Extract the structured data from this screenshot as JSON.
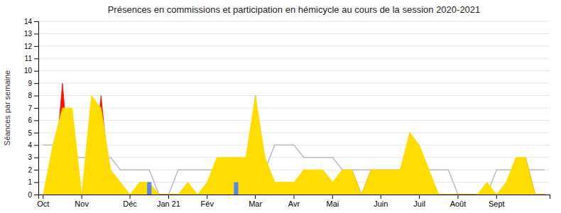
{
  "chart_data": {
    "type": "area",
    "title": "Présences en commissions et participation en hémicycle au cours de la session 2020-2021",
    "ylabel": "Séances par semaine",
    "categories": [
      "Oct",
      null,
      null,
      null,
      "Nov",
      null,
      null,
      null,
      null,
      "Déc",
      null,
      null,
      null,
      "Jan 21",
      null,
      null,
      null,
      "Fév",
      null,
      null,
      null,
      null,
      "Mar",
      null,
      null,
      null,
      "Avr",
      null,
      null,
      null,
      "Mai",
      null,
      null,
      null,
      null,
      "Juin",
      null,
      null,
      null,
      "Juil",
      null,
      null,
      null,
      "Août",
      null,
      null,
      null,
      "Sept",
      null,
      null,
      null,
      null,
      null
    ],
    "ylim": [
      0,
      14
    ],
    "yticks": [
      0,
      1,
      2,
      3,
      4,
      5,
      6,
      7,
      8,
      9,
      10,
      11,
      12,
      13,
      14
    ],
    "grid": true,
    "series": [
      {
        "type": "line",
        "color": "#bbbbbb",
        "values": [
          4,
          4,
          3,
          3,
          3,
          3,
          3,
          3,
          2,
          2,
          2,
          2,
          0,
          0,
          2,
          2,
          2,
          2,
          2,
          2,
          2,
          2,
          2,
          2,
          4,
          4,
          4,
          3,
          3,
          3,
          3,
          2,
          2,
          2,
          2,
          2,
          2,
          2,
          2,
          2,
          2,
          2,
          2,
          0,
          0,
          0,
          0,
          2,
          2,
          2,
          2,
          2,
          2
        ]
      },
      {
        "type": "area",
        "color": "#ff1100",
        "values": [
          0,
          0,
          9,
          0,
          0,
          0,
          8,
          0,
          0,
          0,
          0,
          0,
          0,
          0,
          0,
          0,
          0,
          0,
          0,
          0,
          0,
          0,
          8,
          0,
          0,
          0,
          0,
          2,
          0,
          0,
          0,
          0,
          2,
          0,
          2,
          0,
          0,
          0,
          5,
          0,
          0,
          0,
          0,
          0,
          0,
          0,
          0,
          0,
          0,
          0,
          3,
          0,
          0
        ]
      },
      {
        "type": "area",
        "color": "#ffdd00",
        "values": [
          0,
          4,
          7,
          7,
          0,
          8,
          7,
          2,
          1,
          0,
          1,
          1,
          0,
          0,
          0,
          1,
          0,
          1,
          3,
          3,
          3,
          3,
          8,
          3,
          1,
          1,
          1,
          2,
          2,
          2,
          1,
          2,
          2,
          0,
          2,
          2,
          2,
          2,
          5,
          4,
          2,
          0,
          0,
          0,
          0,
          0,
          1,
          0,
          1,
          3,
          3,
          0,
          0
        ]
      },
      {
        "type": "bar",
        "color": "#5588ee",
        "values": [
          null,
          null,
          null,
          null,
          null,
          null,
          null,
          null,
          null,
          null,
          null,
          1,
          null,
          null,
          null,
          null,
          null,
          null,
          null,
          null,
          1,
          null,
          null,
          null,
          null,
          null,
          null,
          null,
          null,
          null,
          null,
          null,
          null,
          null,
          null,
          null,
          null,
          null,
          null,
          null,
          null,
          null,
          null,
          null,
          null,
          null,
          null,
          null,
          null,
          null,
          null,
          null,
          null
        ]
      }
    ]
  }
}
